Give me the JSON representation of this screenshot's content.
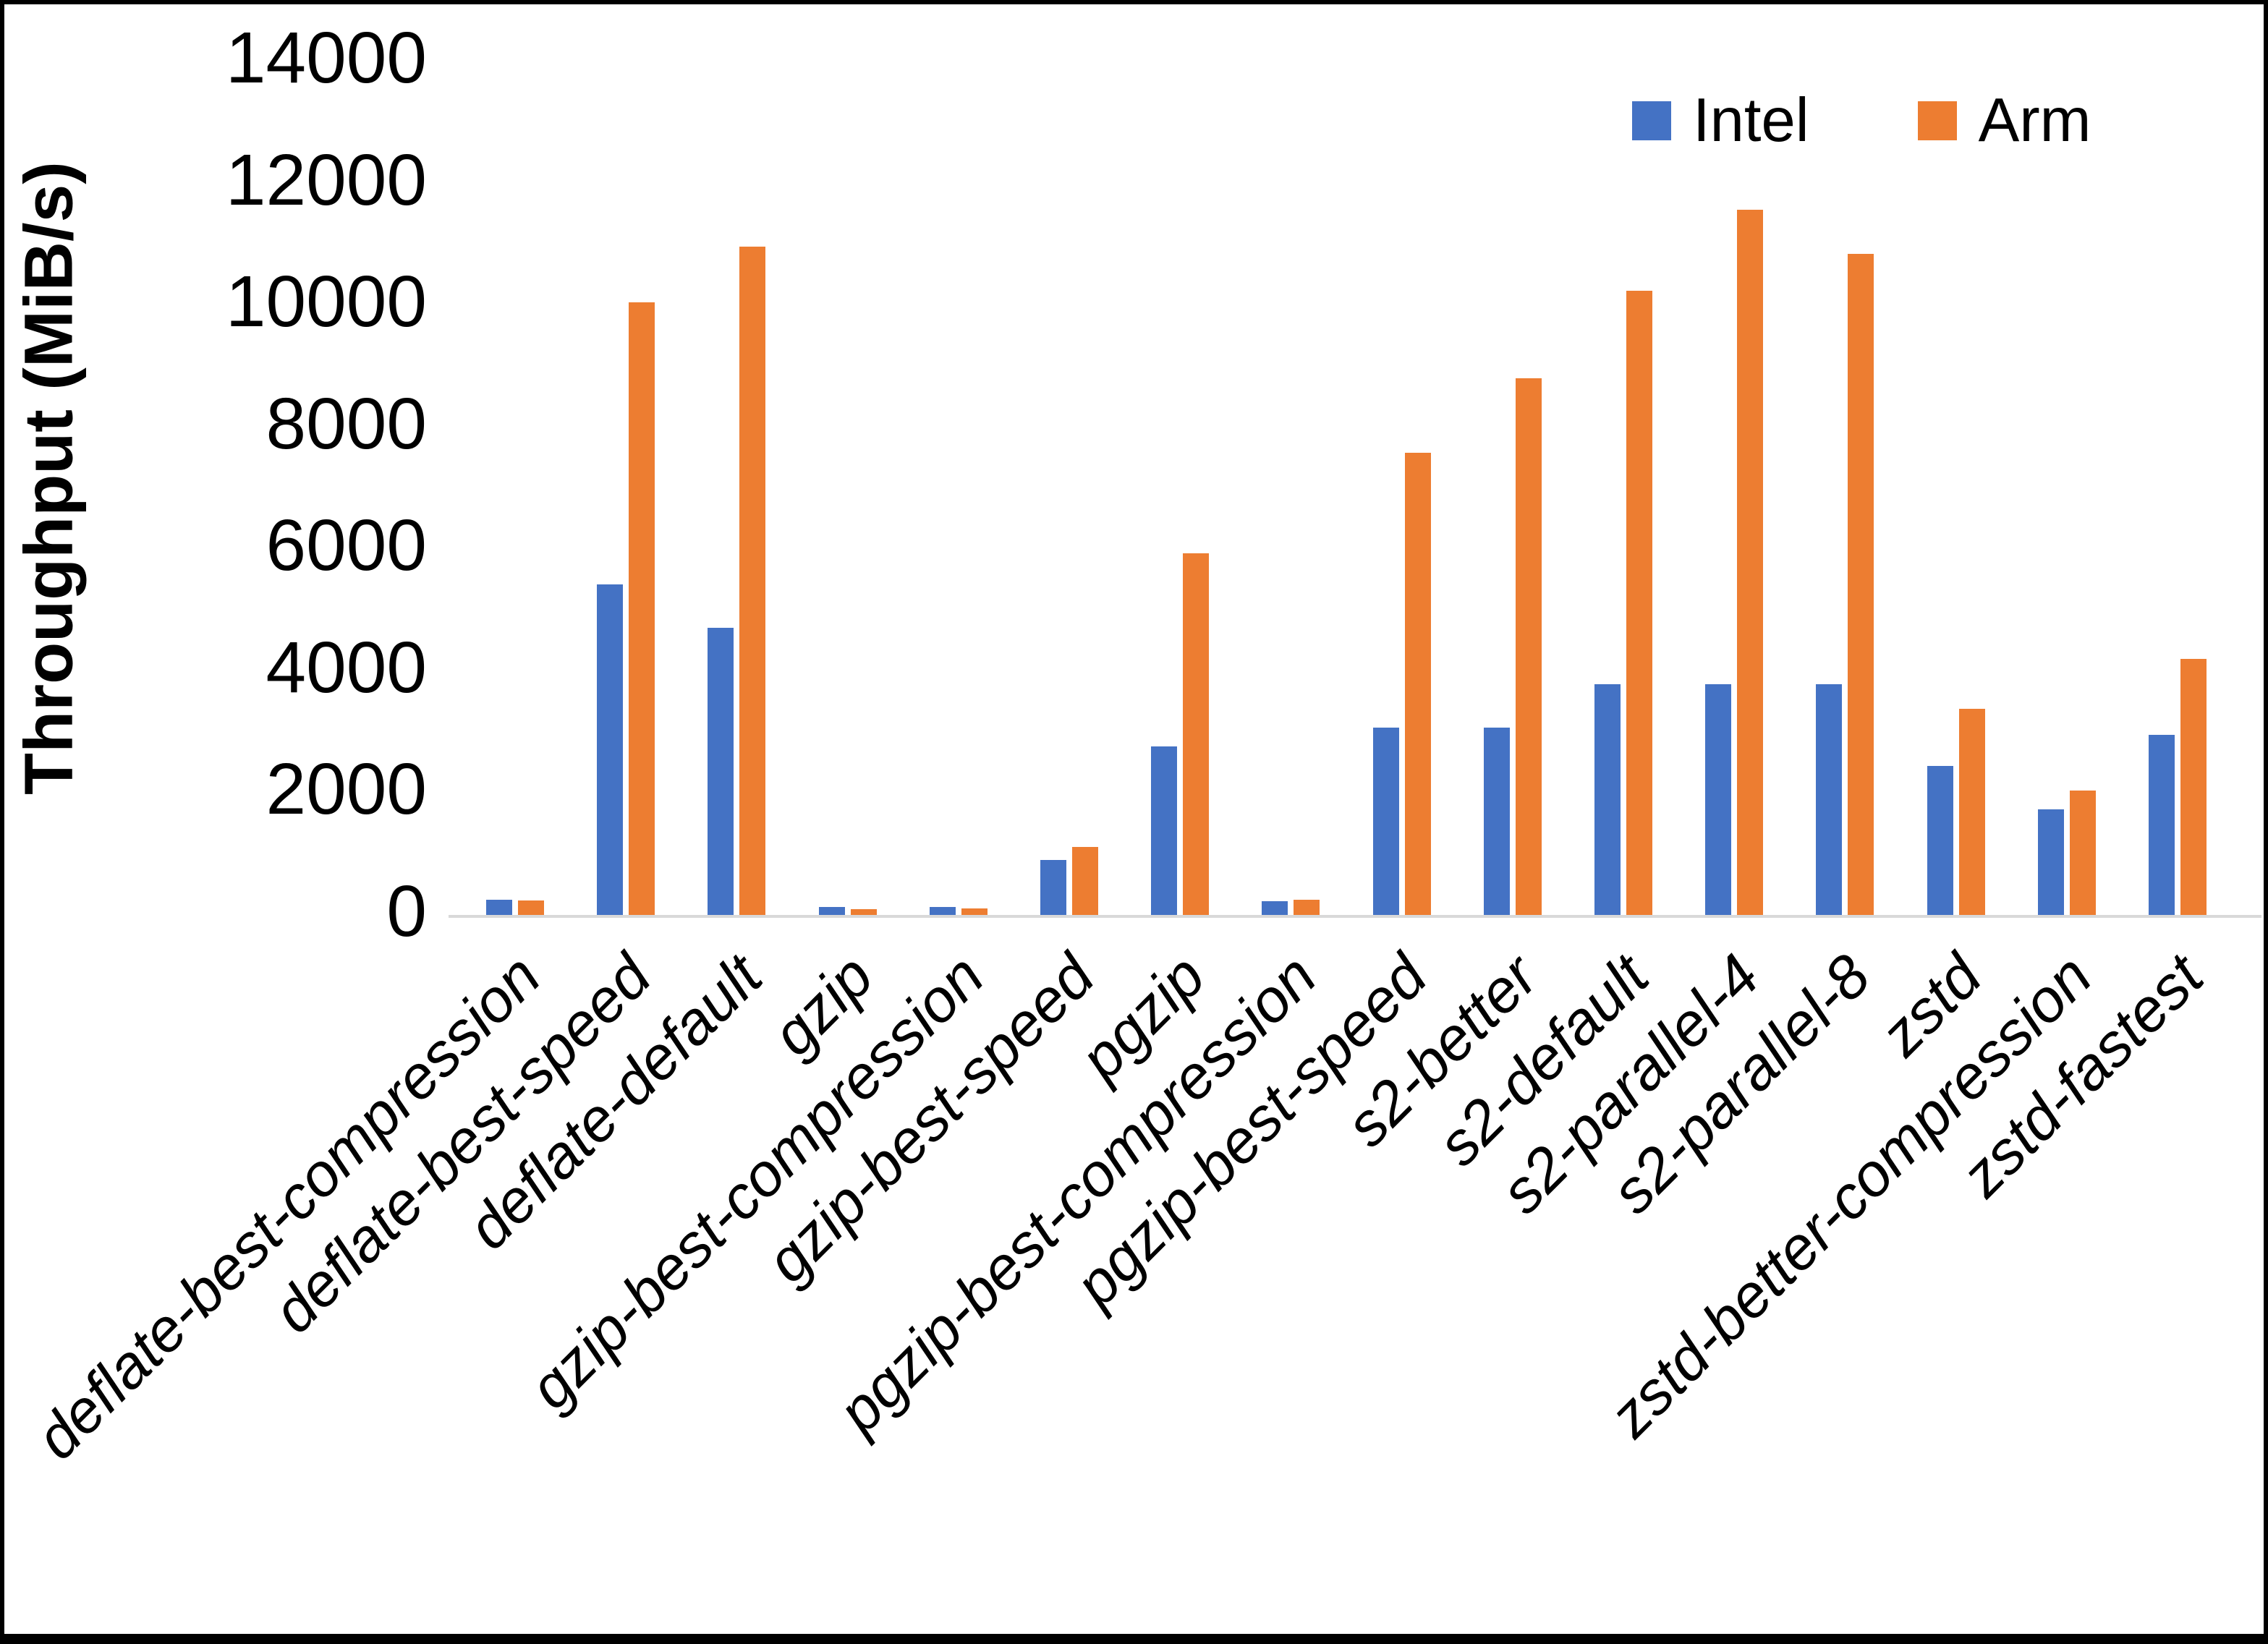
{
  "y_axis": {
    "title": "Throughput (MiB/s)",
    "tick_labels": [
      "0",
      "2000",
      "4000",
      "6000",
      "8000",
      "10000",
      "12000",
      "14000"
    ]
  },
  "legend": {
    "position": "top-right"
  },
  "colors": {
    "intel_blue": "#4472C4",
    "arm_orange": "#ED7D31",
    "axis_line": "#D9D9D9",
    "text": "#000000",
    "background": "#FFFFFF",
    "border": "#000000"
  },
  "chart_data": {
    "type": "bar",
    "title": "",
    "xlabel": "",
    "ylabel": "Throughput (MiB/s)",
    "ylim": [
      0,
      14000
    ],
    "ytick_step": 2000,
    "grid": false,
    "legend_position": "top-right",
    "categories": [
      "deflate-best-compression",
      "deflate-best-speed",
      "deflate-default",
      "gzip",
      "gzip-best-compression",
      "gzip-best-speed",
      "pgzip",
      "pgzip-best-compression",
      "pgzip-best-speed",
      "s2-better",
      "s2-default",
      "s2-parallel-4",
      "s2-parallel-8",
      "zstd",
      "zstd-better-compression",
      "zstd-fastest"
    ],
    "series": [
      {
        "name": "Intel",
        "color": "#4472C4",
        "values": [
          250,
          5420,
          4710,
          130,
          130,
          900,
          2760,
          230,
          3070,
          3070,
          3780,
          3780,
          3780,
          2450,
          1730,
          2960
        ]
      },
      {
        "name": "Arm",
        "color": "#ED7D31",
        "values": [
          240,
          10050,
          10960,
          100,
          110,
          1120,
          5930,
          250,
          7580,
          8800,
          10240,
          11570,
          10850,
          3380,
          2040,
          4200
        ]
      }
    ]
  }
}
